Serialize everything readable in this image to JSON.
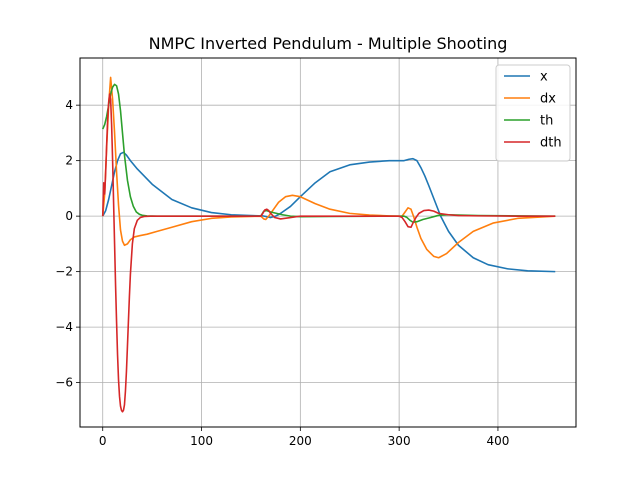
{
  "chart_data": {
    "type": "line",
    "title": "NMPC Inverted Pendulum - Multiple Shooting",
    "xlabel": "",
    "ylabel": "",
    "xlim": [
      -23,
      479
    ],
    "ylim": [
      -7.6,
      5.7
    ],
    "xticks": [
      0,
      100,
      200,
      300,
      400
    ],
    "yticks": [
      -6,
      -4,
      -2,
      0,
      2,
      4
    ],
    "ytick_labels": [
      "−6",
      "−4",
      "−2",
      "0",
      "2",
      "4"
    ],
    "grid": true,
    "legend_position": "top-right",
    "series": [
      {
        "name": "x",
        "color": "#1f77b4",
        "x": [
          0,
          3,
          6,
          9,
          12,
          15,
          18,
          21,
          24,
          28,
          35,
          50,
          70,
          90,
          110,
          130,
          150,
          162,
          166,
          170,
          175,
          180,
          190,
          200,
          215,
          230,
          250,
          270,
          290,
          305,
          310,
          314,
          318,
          322,
          326,
          330,
          336,
          342,
          350,
          360,
          375,
          390,
          410,
          430,
          458
        ],
        "y": [
          0.0,
          0.2,
          0.6,
          1.1,
          1.6,
          2.0,
          2.25,
          2.3,
          2.2,
          2.0,
          1.7,
          1.15,
          0.6,
          0.3,
          0.13,
          0.05,
          0.02,
          0.01,
          -0.02,
          -0.05,
          0.0,
          0.1,
          0.35,
          0.7,
          1.2,
          1.6,
          1.85,
          1.95,
          2.0,
          2.0,
          2.05,
          2.07,
          2.0,
          1.75,
          1.45,
          1.1,
          0.55,
          0.0,
          -0.55,
          -1.05,
          -1.5,
          -1.75,
          -1.9,
          -1.97,
          -2.0
        ]
      },
      {
        "name": "dx",
        "color": "#ff7f0e",
        "x": [
          0,
          2,
          4,
          6,
          8,
          10,
          12,
          14,
          16,
          18,
          20,
          22,
          25,
          28,
          32,
          38,
          45,
          55,
          70,
          90,
          110,
          130,
          150,
          160,
          163,
          165,
          168,
          172,
          178,
          185,
          192,
          200,
          215,
          230,
          250,
          270,
          290,
          303,
          306,
          309,
          312,
          315,
          318,
          322,
          328,
          335,
          340,
          348,
          360,
          375,
          395,
          420,
          458
        ],
        "y": [
          0.0,
          0.8,
          2.5,
          4.0,
          5.0,
          4.2,
          3.0,
          1.6,
          0.4,
          -0.5,
          -0.9,
          -1.05,
          -1.0,
          -0.85,
          -0.75,
          -0.7,
          -0.65,
          -0.55,
          -0.4,
          -0.2,
          -0.08,
          -0.03,
          -0.01,
          0.0,
          -0.1,
          -0.12,
          0.0,
          0.2,
          0.5,
          0.7,
          0.75,
          0.7,
          0.45,
          0.25,
          0.1,
          0.04,
          0.01,
          0.0,
          0.15,
          0.3,
          0.25,
          -0.05,
          -0.4,
          -0.8,
          -1.2,
          -1.45,
          -1.5,
          -1.35,
          -0.95,
          -0.55,
          -0.25,
          -0.08,
          0.0
        ]
      },
      {
        "name": "th",
        "color": "#2ca02c",
        "x": [
          0,
          2,
          4,
          6,
          8,
          10,
          12,
          14,
          16,
          18,
          20,
          22,
          25,
          28,
          31,
          34,
          37,
          40,
          45,
          55,
          70,
          100,
          160,
          163,
          166,
          170,
          176,
          182,
          190,
          200,
          230,
          280,
          305,
          308,
          311,
          314,
          318,
          324,
          332,
          340,
          350,
          380,
          458
        ],
        "y": [
          3.14,
          3.3,
          3.6,
          4.0,
          4.4,
          4.65,
          4.75,
          4.7,
          4.4,
          3.8,
          3.0,
          2.2,
          1.3,
          0.7,
          0.35,
          0.15,
          0.07,
          0.03,
          0.01,
          0.0,
          0.0,
          0.0,
          0.0,
          0.18,
          0.2,
          0.15,
          0.1,
          0.05,
          0.0,
          -0.02,
          -0.01,
          0.0,
          0.0,
          -0.05,
          -0.15,
          -0.22,
          -0.2,
          -0.12,
          -0.05,
          0.03,
          0.05,
          0.02,
          0.0
        ]
      },
      {
        "name": "dth",
        "color": "#d62728",
        "x": [
          0,
          1,
          2,
          3,
          4,
          5,
          6,
          7,
          8,
          9,
          10,
          11,
          12,
          13,
          14,
          15,
          16,
          17,
          18,
          19,
          20,
          21,
          22,
          23,
          24,
          25,
          26,
          27,
          28,
          30,
          32,
          35,
          38,
          42,
          48,
          55,
          70,
          100,
          160,
          162,
          164,
          166,
          168,
          170,
          174,
          180,
          190,
          200,
          300,
          303,
          306,
          309,
          312,
          314,
          317,
          320,
          325,
          330,
          335,
          340,
          350,
          360,
          380,
          420,
          458
        ],
        "y": [
          0.0,
          1.2,
          0.8,
          1.6,
          2.6,
          3.5,
          4.1,
          4.4,
          4.2,
          3.3,
          2.0,
          0.5,
          -1.0,
          -2.5,
          -3.8,
          -5.0,
          -5.9,
          -6.5,
          -6.85,
          -7.0,
          -7.05,
          -7.0,
          -6.8,
          -6.3,
          -5.6,
          -4.7,
          -3.8,
          -2.9,
          -2.1,
          -1.0,
          -0.45,
          -0.15,
          -0.05,
          -0.01,
          0.0,
          0.0,
          0.0,
          0.0,
          0.0,
          0.1,
          0.22,
          0.25,
          0.2,
          0.1,
          -0.05,
          -0.1,
          -0.05,
          0.0,
          0.0,
          -0.05,
          -0.2,
          -0.38,
          -0.4,
          -0.25,
          -0.05,
          0.1,
          0.2,
          0.22,
          0.18,
          0.1,
          0.05,
          0.02,
          0.01,
          0.0,
          0.0
        ]
      }
    ]
  }
}
